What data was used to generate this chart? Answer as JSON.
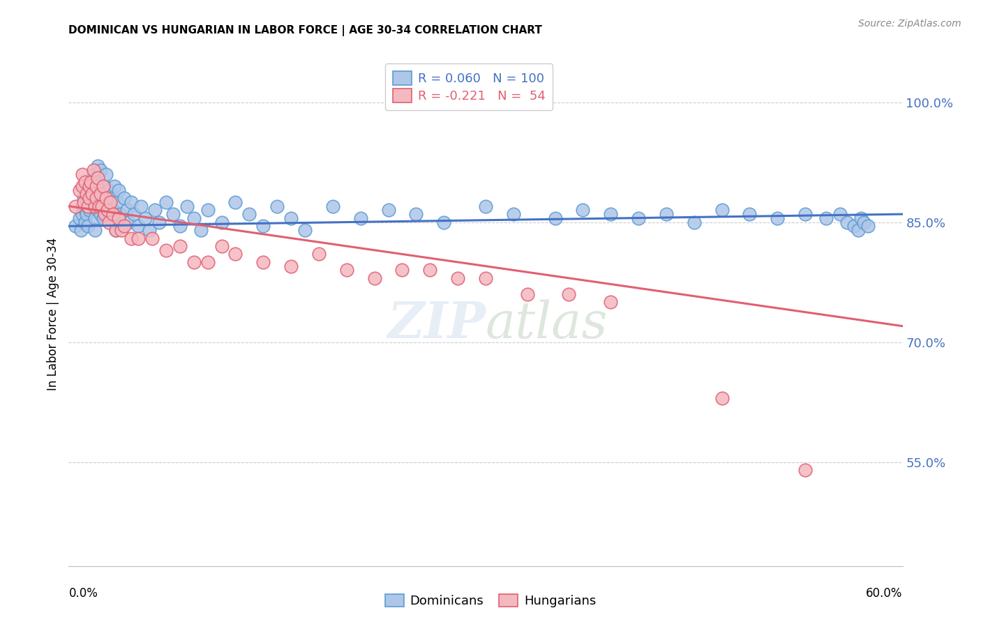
{
  "title": "DOMINICAN VS HUNGARIAN IN LABOR FORCE | AGE 30-34 CORRELATION CHART",
  "source": "Source: ZipAtlas.com",
  "ylabel": "In Labor Force | Age 30-34",
  "ytick_labels": [
    "100.0%",
    "85.0%",
    "70.0%",
    "55.0%"
  ],
  "ytick_values": [
    1.0,
    0.85,
    0.7,
    0.55
  ],
  "xlim": [
    0.0,
    0.6
  ],
  "ylim": [
    0.42,
    1.05
  ],
  "dominican_color": "#aec6e8",
  "dominican_edge": "#5b9bd5",
  "hungarian_color": "#f4b8c1",
  "hungarian_edge": "#e06070",
  "trendline_dominican_color": "#4472c4",
  "trendline_hungarian_color": "#e06070",
  "background_color": "#ffffff",
  "legend_r_dom": "R = 0.060",
  "legend_n_dom": "N = 100",
  "legend_r_hun": "R = -0.221",
  "legend_n_hun": "N =  54",
  "dom_trend_x0": 0.0,
  "dom_trend_y0": 0.845,
  "dom_trend_x1": 0.6,
  "dom_trend_y1": 0.86,
  "hun_trend_x0": 0.0,
  "hun_trend_y0": 0.87,
  "hun_trend_x1": 0.6,
  "hun_trend_y1": 0.72,
  "dominican_scatter_x": [
    0.005,
    0.008,
    0.009,
    0.01,
    0.01,
    0.011,
    0.012,
    0.012,
    0.013,
    0.013,
    0.014,
    0.015,
    0.015,
    0.015,
    0.016,
    0.016,
    0.017,
    0.017,
    0.018,
    0.018,
    0.018,
    0.019,
    0.019,
    0.02,
    0.02,
    0.02,
    0.021,
    0.021,
    0.022,
    0.022,
    0.023,
    0.023,
    0.024,
    0.025,
    0.025,
    0.026,
    0.027,
    0.028,
    0.028,
    0.029,
    0.03,
    0.03,
    0.031,
    0.032,
    0.033,
    0.034,
    0.035,
    0.036,
    0.037,
    0.038,
    0.04,
    0.042,
    0.043,
    0.045,
    0.047,
    0.05,
    0.052,
    0.055,
    0.058,
    0.062,
    0.065,
    0.07,
    0.075,
    0.08,
    0.085,
    0.09,
    0.095,
    0.1,
    0.11,
    0.12,
    0.13,
    0.14,
    0.15,
    0.16,
    0.17,
    0.19,
    0.21,
    0.23,
    0.25,
    0.27,
    0.3,
    0.32,
    0.35,
    0.37,
    0.39,
    0.41,
    0.43,
    0.45,
    0.47,
    0.49,
    0.51,
    0.53,
    0.545,
    0.555,
    0.56,
    0.565,
    0.568,
    0.57,
    0.572,
    0.575
  ],
  "dominican_scatter_y": [
    0.845,
    0.855,
    0.84,
    0.87,
    0.86,
    0.88,
    0.865,
    0.85,
    0.875,
    0.86,
    0.845,
    0.895,
    0.88,
    0.865,
    0.89,
    0.875,
    0.9,
    0.885,
    0.91,
    0.895,
    0.87,
    0.855,
    0.84,
    0.905,
    0.89,
    0.875,
    0.92,
    0.865,
    0.9,
    0.885,
    0.915,
    0.86,
    0.88,
    0.87,
    0.855,
    0.895,
    0.91,
    0.875,
    0.86,
    0.89,
    0.87,
    0.855,
    0.88,
    0.865,
    0.895,
    0.84,
    0.875,
    0.89,
    0.86,
    0.845,
    0.88,
    0.865,
    0.85,
    0.875,
    0.86,
    0.845,
    0.87,
    0.855,
    0.84,
    0.865,
    0.85,
    0.875,
    0.86,
    0.845,
    0.87,
    0.855,
    0.84,
    0.865,
    0.85,
    0.875,
    0.86,
    0.845,
    0.87,
    0.855,
    0.84,
    0.87,
    0.855,
    0.865,
    0.86,
    0.85,
    0.87,
    0.86,
    0.855,
    0.865,
    0.86,
    0.855,
    0.86,
    0.85,
    0.865,
    0.86,
    0.855,
    0.86,
    0.855,
    0.86,
    0.85,
    0.845,
    0.84,
    0.855,
    0.85,
    0.845
  ],
  "hungarian_scatter_x": [
    0.005,
    0.008,
    0.01,
    0.01,
    0.011,
    0.012,
    0.013,
    0.014,
    0.015,
    0.015,
    0.016,
    0.017,
    0.018,
    0.019,
    0.02,
    0.02,
    0.021,
    0.022,
    0.023,
    0.024,
    0.025,
    0.026,
    0.027,
    0.028,
    0.029,
    0.03,
    0.032,
    0.034,
    0.036,
    0.038,
    0.04,
    0.045,
    0.05,
    0.06,
    0.07,
    0.08,
    0.09,
    0.1,
    0.11,
    0.12,
    0.14,
    0.16,
    0.18,
    0.2,
    0.22,
    0.24,
    0.26,
    0.28,
    0.3,
    0.33,
    0.36,
    0.39,
    0.47,
    0.53
  ],
  "hungarian_scatter_y": [
    0.87,
    0.89,
    0.91,
    0.895,
    0.875,
    0.9,
    0.885,
    0.87,
    0.895,
    0.88,
    0.9,
    0.885,
    0.915,
    0.87,
    0.895,
    0.88,
    0.905,
    0.87,
    0.885,
    0.87,
    0.895,
    0.86,
    0.88,
    0.865,
    0.85,
    0.875,
    0.86,
    0.84,
    0.855,
    0.84,
    0.845,
    0.83,
    0.83,
    0.83,
    0.815,
    0.82,
    0.8,
    0.8,
    0.82,
    0.81,
    0.8,
    0.795,
    0.81,
    0.79,
    0.78,
    0.79,
    0.79,
    0.78,
    0.78,
    0.76,
    0.76,
    0.75,
    0.63,
    0.54
  ]
}
